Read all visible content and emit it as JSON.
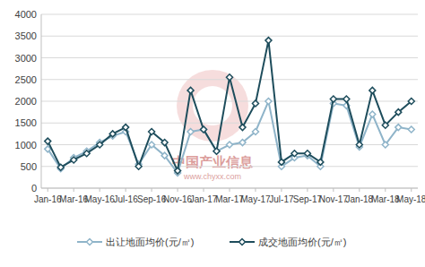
{
  "chart_data": {
    "type": "line",
    "categories": [
      "Jan-16",
      null,
      "Mar-16",
      null,
      "May-16",
      null,
      "Jul-16",
      null,
      "Sep-16",
      null,
      "Nov-16",
      null,
      "Jan-17",
      null,
      "Mar-17",
      null,
      "May-17",
      null,
      "Jul-17",
      null,
      "Sep-17",
      null,
      "Nov-17",
      null,
      "Jan-18",
      null,
      "Mar-18",
      null,
      "May-18"
    ],
    "series": [
      {
        "name": "出让地面均价(元/㎡)",
        "color": "#8fb4c9",
        "marker": "diamond",
        "values": [
          900,
          450,
          700,
          850,
          1050,
          1200,
          1300,
          550,
          1000,
          750,
          350,
          1300,
          1350,
          850,
          1000,
          1050,
          1300,
          2000,
          500,
          700,
          750,
          500,
          1950,
          1900,
          950,
          1700,
          1000,
          1400,
          1350
        ]
      },
      {
        "name": "成交地面均价(元/㎡)",
        "color": "#1e4d5c",
        "marker": "diamond",
        "values": [
          1080,
          480,
          650,
          800,
          1000,
          1250,
          1400,
          500,
          1300,
          1050,
          400,
          2250,
          1350,
          850,
          2550,
          1400,
          1950,
          3400,
          600,
          800,
          800,
          600,
          2050,
          2050,
          1000,
          2250,
          1450,
          1750,
          2000
        ]
      }
    ],
    "ylim": [
      0,
      4000
    ],
    "yticks": [
      0,
      500,
      1000,
      1500,
      2000,
      2500,
      3000,
      3500,
      4000
    ],
    "grid": true,
    "legend": "bottom",
    "annotations": [
      "中国产业信息",
      "www.chyxx.com"
    ]
  }
}
